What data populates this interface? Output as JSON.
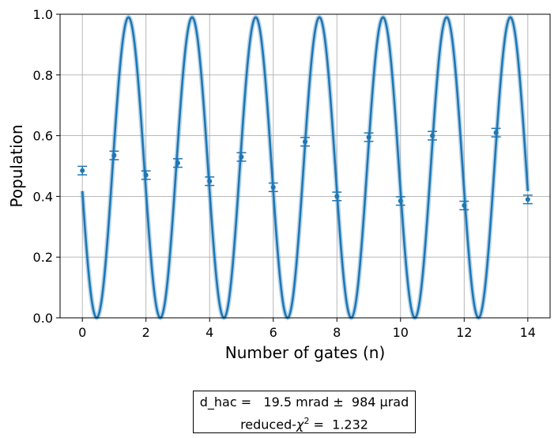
{
  "chart_data": {
    "type": "line",
    "xlabel": "Number of gates (n)",
    "ylabel": "Population",
    "xlim": [
      -0.7,
      14.7
    ],
    "ylim": [
      0.0,
      1.0
    ],
    "xticks": [
      "0",
      "2",
      "4",
      "6",
      "8",
      "10",
      "12",
      "14"
    ],
    "yticks": [
      "0.0",
      "0.2",
      "0.4",
      "0.6",
      "0.8",
      "1.0"
    ],
    "grid": true,
    "series": [
      {
        "kind": "fit-curve",
        "color": "#1f77b4",
        "period": 2.0,
        "phase_peak_at": [
          1.45,
          3.45,
          5.45,
          7.45,
          9.45,
          11.45,
          13.45
        ],
        "amplitude_max": 0.99,
        "amplitude_min": 0.0
      },
      {
        "kind": "data-points",
        "color": "#1f77b4",
        "x": [
          0,
          1,
          2,
          3,
          4,
          5,
          6,
          7,
          8,
          9,
          10,
          11,
          12,
          13,
          14
        ],
        "y": [
          0.485,
          0.535,
          0.47,
          0.51,
          0.45,
          0.53,
          0.43,
          0.58,
          0.4,
          0.595,
          0.385,
          0.6,
          0.37,
          0.61,
          0.39
        ],
        "yerr": [
          0.014,
          0.014,
          0.014,
          0.014,
          0.014,
          0.014,
          0.014,
          0.014,
          0.014,
          0.014,
          0.014,
          0.014,
          0.014,
          0.014,
          0.014
        ]
      }
    ]
  },
  "legend": {
    "line1": "d_hac =   19.5 mrad ±  984 μrad",
    "line2_prefix": "reduced-",
    "line2_chi": "χ",
    "line2_sup": "2",
    "line2_suffix": " =  1.232"
  }
}
